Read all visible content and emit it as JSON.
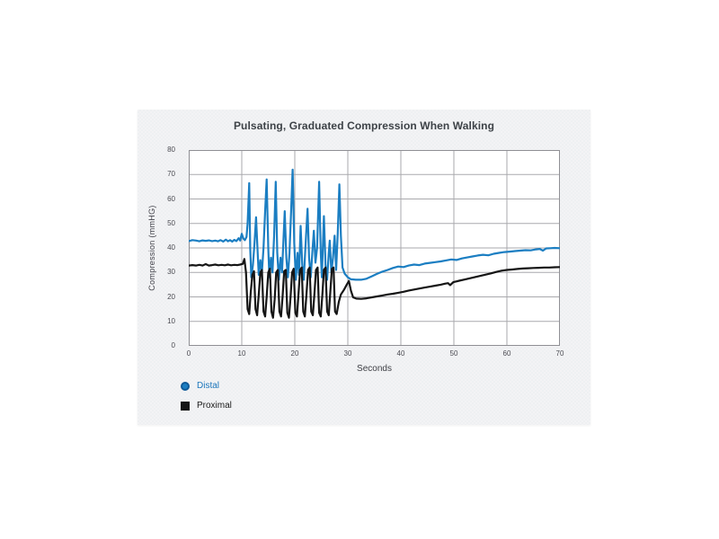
{
  "chart_data": {
    "type": "line",
    "title": "Pulsating, Graduated Compression When Walking",
    "xlabel": "Seconds",
    "ylabel": "Compression  (mmHG)",
    "xlim": [
      0,
      70
    ],
    "ylim": [
      0,
      80
    ],
    "x_ticks": [
      0,
      10,
      20,
      30,
      40,
      50,
      60,
      70
    ],
    "y_ticks": [
      0,
      10,
      20,
      30,
      40,
      50,
      60,
      70,
      80
    ],
    "grid": true,
    "legend_position": "bottom-left",
    "colors": {
      "grid": "#a9a9ad",
      "plot_border": "#8f8f94",
      "plot_bg": "#ffffff",
      "card_bg": "#f3f3f5",
      "title_text": "#3d4247",
      "axis_text": "#4b4b52"
    },
    "series": [
      {
        "name": "Distal",
        "color": "#1b7ec2",
        "label_color": "#1b75bb",
        "marker": "circle",
        "marker_ring": "#0f5a98",
        "points": [
          [
            0,
            42.8
          ],
          [
            0.7,
            43.2
          ],
          [
            1.4,
            43
          ],
          [
            2,
            42.7
          ],
          [
            2.6,
            43.1
          ],
          [
            3.2,
            42.9
          ],
          [
            3.8,
            43.1
          ],
          [
            4.4,
            42.8
          ],
          [
            5,
            43
          ],
          [
            5.5,
            42.7
          ],
          [
            6,
            43.2
          ],
          [
            6.5,
            42.6
          ],
          [
            7,
            43.4
          ],
          [
            7.4,
            42.7
          ],
          [
            7.8,
            43.2
          ],
          [
            8.2,
            42.6
          ],
          [
            8.6,
            43.3
          ],
          [
            9,
            42.8
          ],
          [
            9.4,
            44
          ],
          [
            9.7,
            43
          ],
          [
            10,
            45.8
          ],
          [
            10.3,
            43.8
          ],
          [
            10.6,
            43.2
          ],
          [
            10.9,
            44.5
          ],
          [
            11.1,
            50
          ],
          [
            11.4,
            66.5
          ],
          [
            11.6,
            40
          ],
          [
            11.8,
            28
          ],
          [
            12.1,
            33
          ],
          [
            12.4,
            42
          ],
          [
            12.7,
            52.5
          ],
          [
            13,
            38
          ],
          [
            13.2,
            29
          ],
          [
            13.5,
            35
          ],
          [
            13.8,
            30
          ],
          [
            14.1,
            40
          ],
          [
            14.4,
            55
          ],
          [
            14.7,
            68
          ],
          [
            15,
            40
          ],
          [
            15.2,
            28
          ],
          [
            15.5,
            36
          ],
          [
            15.8,
            30
          ],
          [
            16.1,
            45
          ],
          [
            16.4,
            67
          ],
          [
            16.7,
            38
          ],
          [
            17,
            27
          ],
          [
            17.3,
            36
          ],
          [
            17.6,
            30
          ],
          [
            17.9,
            45
          ],
          [
            18.1,
            55
          ],
          [
            18.4,
            36
          ],
          [
            18.7,
            28
          ],
          [
            19,
            38
          ],
          [
            19.3,
            55
          ],
          [
            19.6,
            72
          ],
          [
            19.9,
            42
          ],
          [
            20.2,
            27
          ],
          [
            20.5,
            38
          ],
          [
            20.8,
            29
          ],
          [
            21.1,
            49
          ],
          [
            21.4,
            33
          ],
          [
            21.7,
            27
          ],
          [
            22,
            40
          ],
          [
            22.4,
            56
          ],
          [
            22.7,
            36
          ],
          [
            23,
            28
          ],
          [
            23.3,
            38
          ],
          [
            23.6,
            47
          ],
          [
            23.9,
            34
          ],
          [
            24.2,
            40
          ],
          [
            24.6,
            67
          ],
          [
            24.9,
            38
          ],
          [
            25.1,
            28
          ],
          [
            25.5,
            53
          ],
          [
            25.8,
            33
          ],
          [
            26.1,
            27
          ],
          [
            26.4,
            38
          ],
          [
            26.6,
            43
          ],
          [
            26.9,
            30
          ],
          [
            27.2,
            36
          ],
          [
            27.5,
            45
          ],
          [
            27.8,
            31
          ],
          [
            28.1,
            46
          ],
          [
            28.4,
            66
          ],
          [
            28.7,
            45
          ],
          [
            29,
            32
          ],
          [
            29.4,
            29.5
          ],
          [
            30,
            28
          ],
          [
            30.6,
            27.2
          ],
          [
            31.5,
            27
          ],
          [
            32.5,
            27
          ],
          [
            33.5,
            27.4
          ],
          [
            34.5,
            28.4
          ],
          [
            35.5,
            29.4
          ],
          [
            36.5,
            30.3
          ],
          [
            37.5,
            31
          ],
          [
            38.5,
            31.8
          ],
          [
            39.5,
            32.4
          ],
          [
            40.5,
            32.2
          ],
          [
            41.5,
            32.8
          ],
          [
            42.5,
            33.2
          ],
          [
            43.5,
            33
          ],
          [
            44.5,
            33.6
          ],
          [
            45.5,
            33.9
          ],
          [
            46.5,
            34.2
          ],
          [
            47.5,
            34.5
          ],
          [
            48.5,
            34.9
          ],
          [
            49.5,
            35.3
          ],
          [
            50.5,
            35.1
          ],
          [
            51.5,
            35.7
          ],
          [
            52.5,
            36.1
          ],
          [
            53.5,
            36.5
          ],
          [
            54.5,
            36.9
          ],
          [
            55.5,
            37.2
          ],
          [
            56.5,
            37
          ],
          [
            57.5,
            37.6
          ],
          [
            58.5,
            38
          ],
          [
            59.5,
            38.3
          ],
          [
            60.5,
            38.5
          ],
          [
            61.5,
            38.7
          ],
          [
            62.5,
            38.9
          ],
          [
            63.5,
            39.1
          ],
          [
            64.5,
            39
          ],
          [
            65.5,
            39.4
          ],
          [
            66.2,
            39.6
          ],
          [
            66.8,
            38.9
          ],
          [
            67.4,
            39.8
          ],
          [
            68.2,
            39.9
          ],
          [
            69,
            40
          ],
          [
            70,
            39.9
          ]
        ]
      },
      {
        "name": "Proximal",
        "color": "#151515",
        "label_color": "#1a1a1a",
        "marker": "square",
        "marker_ring": "#151515",
        "points": [
          [
            0,
            32.8
          ],
          [
            0.7,
            33
          ],
          [
            1.4,
            32.8
          ],
          [
            2,
            33.1
          ],
          [
            2.6,
            32.8
          ],
          [
            3.2,
            33.4
          ],
          [
            3.8,
            32.8
          ],
          [
            4.4,
            33
          ],
          [
            5,
            33.2
          ],
          [
            5.6,
            32.9
          ],
          [
            6.2,
            33.1
          ],
          [
            6.8,
            32.9
          ],
          [
            7.4,
            33.2
          ],
          [
            8,
            32.9
          ],
          [
            8.6,
            33.1
          ],
          [
            9.2,
            33
          ],
          [
            9.7,
            33.2
          ],
          [
            10.2,
            33.5
          ],
          [
            10.5,
            35.5
          ],
          [
            10.8,
            30
          ],
          [
            11.1,
            15
          ],
          [
            11.4,
            13
          ],
          [
            11.7,
            22
          ],
          [
            12,
            29
          ],
          [
            12.3,
            30.5
          ],
          [
            12.6,
            15
          ],
          [
            12.9,
            12.5
          ],
          [
            13.2,
            21
          ],
          [
            13.5,
            30
          ],
          [
            13.8,
            31
          ],
          [
            14.1,
            14
          ],
          [
            14.4,
            12
          ],
          [
            14.7,
            20
          ],
          [
            15,
            30
          ],
          [
            15.3,
            31.5
          ],
          [
            15.6,
            14
          ],
          [
            15.9,
            11.5
          ],
          [
            16.2,
            19
          ],
          [
            16.5,
            30
          ],
          [
            16.8,
            31
          ],
          [
            17.1,
            14
          ],
          [
            17.4,
            12
          ],
          [
            17.7,
            20
          ],
          [
            18,
            30.5
          ],
          [
            18.3,
            31
          ],
          [
            18.6,
            13.5
          ],
          [
            18.9,
            11.5
          ],
          [
            19.2,
            20
          ],
          [
            19.5,
            30
          ],
          [
            19.8,
            31.5
          ],
          [
            20.1,
            13.5
          ],
          [
            20.4,
            12
          ],
          [
            20.7,
            21
          ],
          [
            21,
            31
          ],
          [
            21.3,
            32
          ],
          [
            21.6,
            14
          ],
          [
            21.9,
            12
          ],
          [
            22.2,
            21
          ],
          [
            22.5,
            31
          ],
          [
            22.8,
            32
          ],
          [
            23.1,
            14
          ],
          [
            23.4,
            12.5
          ],
          [
            23.7,
            21
          ],
          [
            24,
            31
          ],
          [
            24.3,
            32
          ],
          [
            24.6,
            13.5
          ],
          [
            24.9,
            12
          ],
          [
            25.2,
            21
          ],
          [
            25.5,
            31
          ],
          [
            25.8,
            32
          ],
          [
            26.1,
            14
          ],
          [
            26.4,
            12.5
          ],
          [
            26.7,
            22
          ],
          [
            27,
            31.5
          ],
          [
            27.3,
            32
          ],
          [
            27.6,
            14
          ],
          [
            27.9,
            13
          ],
          [
            28.3,
            18
          ],
          [
            28.7,
            21
          ],
          [
            29.3,
            23
          ],
          [
            29.8,
            25
          ],
          [
            30.2,
            26.5
          ],
          [
            30.6,
            22.5
          ],
          [
            31,
            19.8
          ],
          [
            31.6,
            19.3
          ],
          [
            32.5,
            19.2
          ],
          [
            33.5,
            19.4
          ],
          [
            34.5,
            19.8
          ],
          [
            35.5,
            20.2
          ],
          [
            36.5,
            20.6
          ],
          [
            37.5,
            21
          ],
          [
            38.5,
            21.3
          ],
          [
            39.5,
            21.7
          ],
          [
            40.5,
            22.1
          ],
          [
            41.5,
            22.6
          ],
          [
            42.5,
            23
          ],
          [
            43.5,
            23.4
          ],
          [
            44.5,
            23.8
          ],
          [
            45.5,
            24.2
          ],
          [
            46.5,
            24.6
          ],
          [
            47.5,
            25
          ],
          [
            48.3,
            25.4
          ],
          [
            48.9,
            25.6
          ],
          [
            49.3,
            24.8
          ],
          [
            49.9,
            26
          ],
          [
            51,
            26.6
          ],
          [
            52,
            27.1
          ],
          [
            53,
            27.6
          ],
          [
            54,
            28.1
          ],
          [
            55,
            28.6
          ],
          [
            56,
            29.1
          ],
          [
            57,
            29.6
          ],
          [
            58,
            30.2
          ],
          [
            59,
            30.7
          ],
          [
            60,
            31
          ],
          [
            61,
            31.2
          ],
          [
            62,
            31.4
          ],
          [
            63,
            31.6
          ],
          [
            64,
            31.7
          ],
          [
            65,
            31.8
          ],
          [
            66,
            31.9
          ],
          [
            67,
            32
          ],
          [
            68,
            32
          ],
          [
            69,
            32.1
          ],
          [
            70,
            32.2
          ]
        ]
      }
    ]
  }
}
